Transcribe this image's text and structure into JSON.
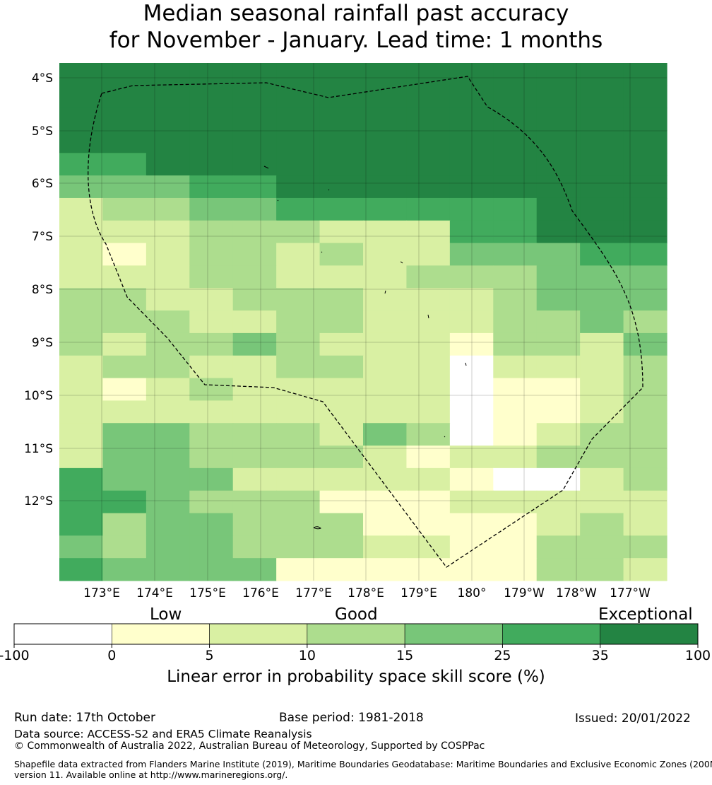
{
  "title_line1": "Median seasonal rainfall past accuracy",
  "title_line2": "for November - January. Lead time: 1 months",
  "lat_labels": [
    "4°S",
    "5°S",
    "6°S",
    "7°S",
    "8°S",
    "9°S",
    "10°S",
    "11°S",
    "12°S"
  ],
  "lon_labels": [
    "173°E",
    "174°E",
    "175°E",
    "176°E",
    "177°E",
    "178°E",
    "179°E",
    "180°",
    "179°W",
    "178°W",
    "177°W"
  ],
  "colorbar": {
    "words": [
      "Low",
      "Good",
      "Exceptional"
    ],
    "ticks": [
      "-100",
      "0",
      "5",
      "10",
      "15",
      "25",
      "35",
      "100"
    ],
    "colors": [
      "#ffffff",
      "#ffffcc",
      "#d9f0a3",
      "#addd8e",
      "#78c679",
      "#41ab5d",
      "#238443"
    ],
    "label": "Linear error in probability space skill score (%)"
  },
  "grid_colors_by_class": [
    "#ffffff",
    "#ffffcc",
    "#d9f0a3",
    "#addd8e",
    "#78c679",
    "#41ab5d",
    "#238443"
  ],
  "grid_classes": [
    "66666666666666",
    "66666666666666",
    "66666666666666",
    "66666666666666",
    "55666666666666",
    "44455666666666",
    "23344555555666",
    "22233322255666",
    "21233232244455",
    "22233222333444",
    "33223332223444",
    "33322332223343",
    "32334322213324",
    "23322332202223",
    "21232222201123",
    "22222222201123",
    "24433324301233",
    "24433332122333",
    "54442222210023",
    "55433311122222",
    "53443331111232",
    "43443332211333",
    "54444111111332"
  ],
  "footer": {
    "run_date": "Run date: 17th October",
    "base_period": "Base period: 1981-2018",
    "issued": "Issued: 20/01/2022",
    "source": "Data source: ACCESS-S2 and ERA5 Climate Reanalysis",
    "copyright": "© Commonwealth of Australia 2022, Australian Bureau of Meteorology, Supported by COSPPac",
    "shapefile_1": "Shapefile data extracted from Flanders Marine Institute (2019), Maritime Boundaries Geodatabase: Maritime Boundaries and Exclusive Economic Zones (200NM),",
    "shapefile_2": "version 11. Available online at http://www.marineregions.org/."
  }
}
